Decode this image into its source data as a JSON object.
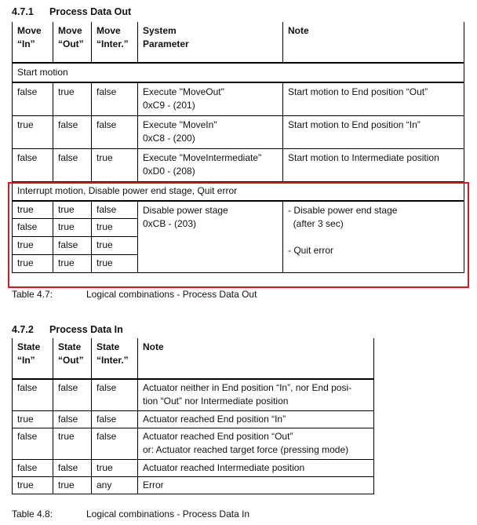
{
  "section1": {
    "number": "4.7.1",
    "title": "Process Data Out",
    "headers": [
      "Move\n“In”",
      "Move\n“Out”",
      "Move\n“Inter.”",
      "System\nParameter",
      "Note"
    ],
    "group1": "Start motion",
    "rows": [
      [
        "false",
        "true",
        "false",
        "Execute \"MoveOut\"\n0xC9 - (201)",
        "Start motion to End position “Out”"
      ],
      [
        "true",
        "false",
        "false",
        "Execute \"MoveIn\"\n0xC8 - (200)",
        "Start motion to End position “In”"
      ],
      [
        "false",
        "false",
        "true",
        "Execute \"MoveIntermediate\"\n0xD0 - (208)",
        "Start motion to Intermediate position"
      ]
    ],
    "group2": "Interrupt motion, Disable power end stage, Quit error",
    "sub_rows": [
      [
        "true",
        "true",
        "false"
      ],
      [
        "false",
        "true",
        "true"
      ],
      [
        "true",
        "false",
        "true"
      ],
      [
        "true",
        "true",
        "true"
      ]
    ],
    "sub_param": "Disable power stage\n0xCB - (203)",
    "sub_note": "- Disable power end stage\n  (after 3 sec)\n\n- Quit error",
    "caption_num": "Table 4.7:",
    "caption": "Logical combinations - Process Data Out",
    "highlight_color": "#e0151f"
  },
  "section2": {
    "number": "4.7.2",
    "title": "Process Data In",
    "headers": [
      "State\n“In”",
      "State\n“Out”",
      "State\n“Inter.”",
      "Note"
    ],
    "rows": [
      [
        "false",
        "false",
        "false",
        "Actuator neither in End position “In”, nor End posi-\ntion “Out” nor Intermediate position"
      ],
      [
        "true",
        "false",
        "false",
        "Actuator reached End position “In”"
      ],
      [
        "false",
        "true",
        "false",
        "Actuator reached End position “Out”\nor: Actuator reached target force (pressing mode)"
      ],
      [
        "false",
        "false",
        "true",
        "Actuator reached Intermediate position"
      ],
      [
        "true",
        "true",
        "any",
        "Error"
      ]
    ],
    "caption_num": "Table 4.8:",
    "caption": "Logical combinations - Process Data In"
  }
}
